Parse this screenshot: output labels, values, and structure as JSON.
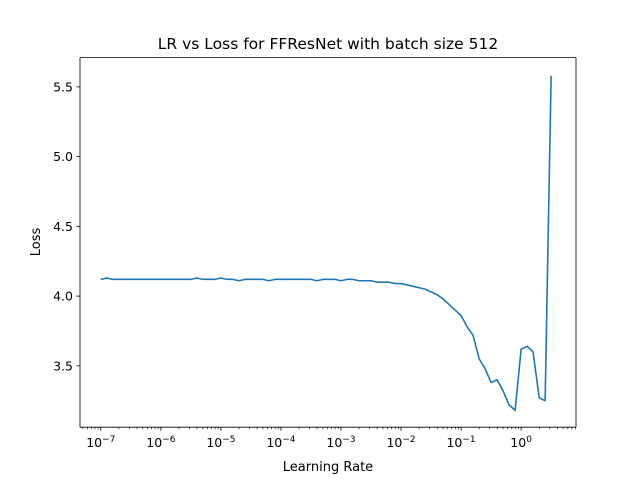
{
  "chart_data": {
    "type": "line",
    "title": "LR vs Loss for FFResNet with batch size 512",
    "xlabel": "Learning Rate",
    "ylabel": "Loss",
    "xscale": "log",
    "xlim": [
      4.5e-08,
      8.2
    ],
    "ylim": [
      3.06,
      5.71
    ],
    "grid": false,
    "x_ticks": [
      {
        "value": 1e-07,
        "base": "10",
        "exp": "−7"
      },
      {
        "value": 1e-06,
        "base": "10",
        "exp": "−6"
      },
      {
        "value": 1e-05,
        "base": "10",
        "exp": "−5"
      },
      {
        "value": 0.0001,
        "base": "10",
        "exp": "−4"
      },
      {
        "value": 0.001,
        "base": "10",
        "exp": "−3"
      },
      {
        "value": 0.01,
        "base": "10",
        "exp": "−2"
      },
      {
        "value": 0.1,
        "base": "10",
        "exp": "−1"
      },
      {
        "value": 1,
        "base": "10",
        "exp": "0"
      }
    ],
    "y_ticks": [
      {
        "value": 3.5,
        "label": "3.5"
      },
      {
        "value": 4.0,
        "label": "4.0"
      },
      {
        "value": 4.5,
        "label": "4.5"
      },
      {
        "value": 5.0,
        "label": "5.0"
      },
      {
        "value": 5.5,
        "label": "5.5"
      }
    ],
    "series": [
      {
        "color": "#1f77b4",
        "x": [
          1e-07,
          1.26e-07,
          1.58e-07,
          2e-07,
          2.51e-07,
          3.16e-07,
          3.98e-07,
          5.01e-07,
          6.31e-07,
          7.94e-07,
          1e-06,
          1.26e-06,
          1.58e-06,
          2e-06,
          2.51e-06,
          3.16e-06,
          3.98e-06,
          5.01e-06,
          6.31e-06,
          7.94e-06,
          1e-05,
          1.26e-05,
          1.58e-05,
          2e-05,
          2.51e-05,
          3.16e-05,
          3.98e-05,
          5.01e-05,
          6.31e-05,
          7.94e-05,
          0.0001,
          0.000126,
          0.000158,
          0.0002,
          0.000251,
          0.000316,
          0.000398,
          0.000501,
          0.000631,
          0.000794,
          0.001,
          0.00126,
          0.00158,
          0.002,
          0.00251,
          0.00316,
          0.00398,
          0.00501,
          0.00631,
          0.00794,
          0.01,
          0.0126,
          0.0158,
          0.02,
          0.0251,
          0.0316,
          0.0398,
          0.0501,
          0.0631,
          0.0794,
          0.1,
          0.126,
          0.158,
          0.2,
          0.251,
          0.316,
          0.398,
          0.501,
          0.631,
          0.794,
          1.0,
          1.26,
          1.58,
          2.0,
          2.51,
          3.16
        ],
        "y": [
          4.12,
          4.13,
          4.12,
          4.12,
          4.12,
          4.12,
          4.12,
          4.12,
          4.12,
          4.12,
          4.12,
          4.12,
          4.12,
          4.12,
          4.12,
          4.12,
          4.13,
          4.12,
          4.12,
          4.12,
          4.13,
          4.12,
          4.12,
          4.11,
          4.12,
          4.12,
          4.12,
          4.12,
          4.11,
          4.12,
          4.12,
          4.12,
          4.12,
          4.12,
          4.12,
          4.12,
          4.11,
          4.12,
          4.12,
          4.12,
          4.11,
          4.12,
          4.12,
          4.11,
          4.11,
          4.11,
          4.1,
          4.1,
          4.1,
          4.09,
          4.09,
          4.08,
          4.07,
          4.06,
          4.05,
          4.03,
          4.01,
          3.98,
          3.94,
          3.9,
          3.86,
          3.78,
          3.72,
          3.55,
          3.48,
          3.38,
          3.4,
          3.32,
          3.22,
          3.18,
          3.62,
          3.64,
          3.6,
          3.27,
          3.25,
          5.58
        ]
      }
    ]
  }
}
